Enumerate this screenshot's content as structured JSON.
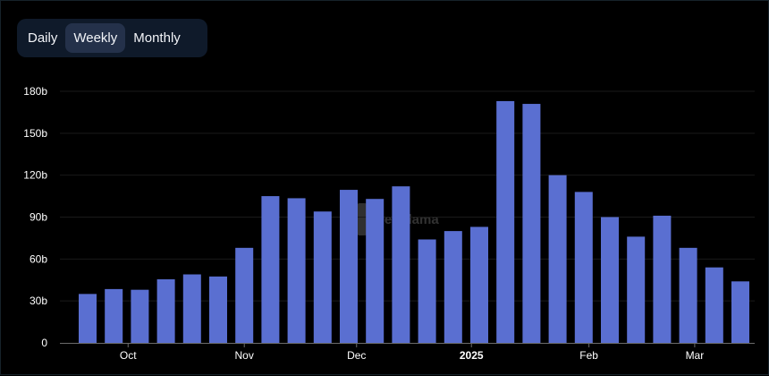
{
  "toggle": {
    "options": [
      "Daily",
      "Weekly",
      "Monthly"
    ],
    "selected": "Weekly"
  },
  "watermark": {
    "text": "DefiLlama"
  },
  "chart_data": {
    "type": "bar",
    "bar_color": "#5a6fd1",
    "background": "#000000",
    "ylim": [
      0,
      180
    ],
    "y_ticks": [
      {
        "value": 0,
        "label": "0"
      },
      {
        "value": 30,
        "label": "30b"
      },
      {
        "value": 60,
        "label": "60b"
      },
      {
        "value": 90,
        "label": "90b"
      },
      {
        "value": 120,
        "label": "120b"
      },
      {
        "value": 150,
        "label": "150b"
      },
      {
        "value": 180,
        "label": "180b"
      }
    ],
    "x_ticks": [
      {
        "label": "Oct",
        "bold": false,
        "at_bar": 1.55
      },
      {
        "label": "Nov",
        "bold": false,
        "at_bar": 6
      },
      {
        "label": "Dec",
        "bold": false,
        "at_bar": 10.3
      },
      {
        "label": "2025",
        "bold": true,
        "at_bar": 14.7
      },
      {
        "label": "Feb",
        "bold": false,
        "at_bar": 19.2
      },
      {
        "label": "Mar",
        "bold": false,
        "at_bar": 23.25
      }
    ],
    "values": [
      35,
      38.5,
      38,
      45.5,
      49,
      47.5,
      68,
      105,
      103.5,
      94,
      109.5,
      103,
      112,
      74,
      80,
      83,
      173,
      171,
      120,
      108,
      90,
      76,
      91,
      68,
      54,
      44
    ],
    "xlabel": "",
    "ylabel": "",
    "grid": true,
    "legend": "none"
  }
}
